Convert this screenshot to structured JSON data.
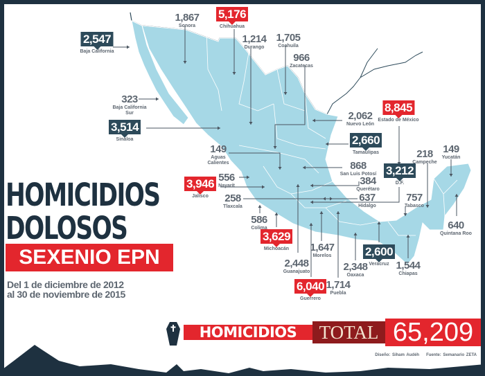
{
  "title": {
    "line1": "HOMICIDIOS",
    "line2": "DOLOSOS",
    "line3": "SEXENIO EPN",
    "dates_line1": "Del 1 de diciembre de 2012",
    "dates_line2": "al 30 de noviembre de 2015"
  },
  "total": {
    "label": "HOMICIDIOS",
    "total_word": "TOTAL",
    "value": "65,209"
  },
  "credits": {
    "design": "Diseño: Siham Audéh",
    "source": "Fuente: Semanario ZETA"
  },
  "colors": {
    "land": "#a6d8e6",
    "red": "#e3262d",
    "dark": "#2d4a5a",
    "frame": "#1e3140"
  },
  "states": [
    {
      "name": "Sonora",
      "value": "1,867",
      "style": "plain"
    },
    {
      "name": "Chihuahua",
      "value": "5,176",
      "style": "red"
    },
    {
      "name": "Durango",
      "value": "1,214",
      "style": "plain"
    },
    {
      "name": "Coahuila",
      "value": "1,705",
      "style": "plain"
    },
    {
      "name": "Zacatecas",
      "value": "966",
      "style": "plain"
    },
    {
      "name": "Baja California",
      "value": "2,547",
      "style": "dark"
    },
    {
      "name": "Baja California Sur",
      "value": "323",
      "style": "plain"
    },
    {
      "name": "Sinaloa",
      "value": "3,514",
      "style": "dark"
    },
    {
      "name": "Nuevo León",
      "value": "2,062",
      "style": "plain"
    },
    {
      "name": "Estado de México",
      "value": "8,845",
      "style": "red"
    },
    {
      "name": "Tamaulipas",
      "value": "2,660",
      "style": "dark"
    },
    {
      "name": "San Luis Potosí",
      "value": "868",
      "style": "plain"
    },
    {
      "name": "Querétaro",
      "value": "384",
      "style": "plain"
    },
    {
      "name": "Hidalgo",
      "value": "637",
      "style": "plain"
    },
    {
      "name": "D.F.",
      "value": "3,212",
      "style": "dark"
    },
    {
      "name": "Tabasco",
      "value": "757",
      "style": "plain"
    },
    {
      "name": "Campeche",
      "value": "218",
      "style": "plain"
    },
    {
      "name": "Yucatán",
      "value": "149",
      "style": "plain"
    },
    {
      "name": "Quintana Roo",
      "value": "640",
      "style": "plain"
    },
    {
      "name": "Aguas Calientes",
      "value": "149",
      "style": "plain"
    },
    {
      "name": "Nayarit",
      "value": "556",
      "style": "plain"
    },
    {
      "name": "Jalisco",
      "value": "3,946",
      "style": "red"
    },
    {
      "name": "Tlaxcala",
      "value": "258",
      "style": "plain"
    },
    {
      "name": "Colima",
      "value": "586",
      "style": "plain"
    },
    {
      "name": "Michoacán",
      "value": "3,629",
      "style": "red"
    },
    {
      "name": "Morelos",
      "value": "1,647",
      "style": "plain"
    },
    {
      "name": "Guanajuato",
      "value": "2,448",
      "style": "plain"
    },
    {
      "name": "Guerrero",
      "value": "6,040",
      "style": "red"
    },
    {
      "name": "Oaxaca",
      "value": "2,348",
      "style": "plain"
    },
    {
      "name": "Puebla",
      "value": "1,714",
      "style": "plain"
    },
    {
      "name": "Veracruz",
      "value": "2,600",
      "style": "dark"
    },
    {
      "name": "Chiapas",
      "value": "1,544",
      "style": "plain"
    }
  ]
}
